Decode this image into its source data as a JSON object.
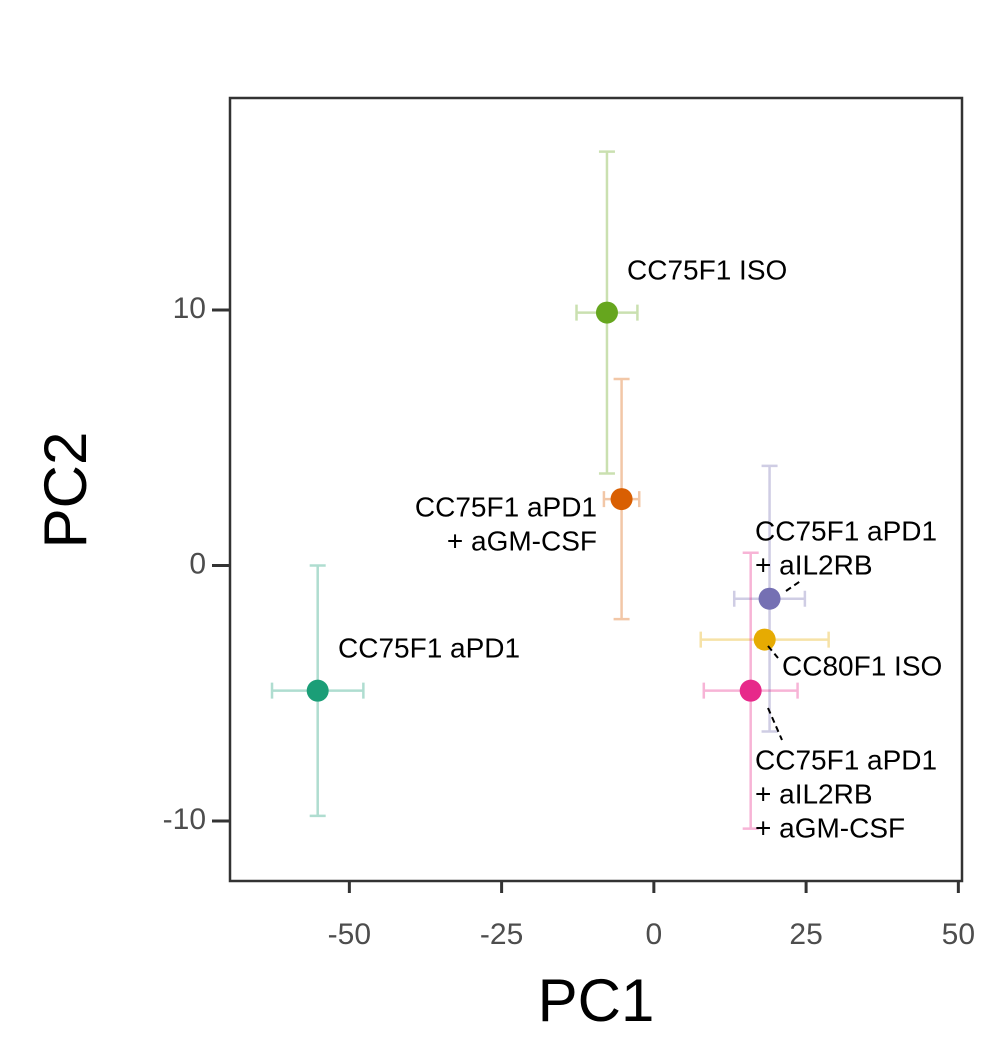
{
  "chart_data": {
    "type": "scatter",
    "x_label": "PC1",
    "y_label": "PC2",
    "xlim": [
      -69.6,
      50.6
    ],
    "ylim": [
      -12.35,
      18.3
    ],
    "xticks": [
      -50,
      -25,
      0,
      25,
      50
    ],
    "yticks": [
      -10,
      0,
      10
    ],
    "points": [
      {
        "label": [
          "CC75F1 ISO"
        ],
        "color": "#66a61e",
        "x": -7.7,
        "y": 9.9,
        "xerr": 5.0,
        "yerr": 6.3
      },
      {
        "label": [
          "CC75F1 aPD1",
          "+ aGM-CSF"
        ],
        "color": "#d95f02",
        "x": -5.3,
        "y": 2.6,
        "xerr": 2.9,
        "yerr": 4.7
      },
      {
        "label": [
          "CC75F1 aPD1"
        ],
        "color": "#1b9e77",
        "x": -55.2,
        "y": -4.9,
        "xerr": 7.5,
        "yerr": 4.9
      },
      {
        "label": [
          "CC75F1 aPD1",
          "+ aIL2RB"
        ],
        "color": "#7570b3",
        "x": 19.0,
        "y": -1.3,
        "xerr": 5.8,
        "yerr": 5.2
      },
      {
        "label": [
          "CC80F1 ISO"
        ],
        "color": "#e6ab02",
        "x": 18.2,
        "y": -2.9,
        "xerr": 10.5,
        "yerr": 0.3
      },
      {
        "label": [
          "CC75F1 aPD1",
          "+ aIL2RB",
          "+ aGM-CSF"
        ],
        "color": "#e7298a",
        "x": 15.9,
        "y": -4.9,
        "xerr": 7.7,
        "yerr": 5.4
      }
    ]
  }
}
